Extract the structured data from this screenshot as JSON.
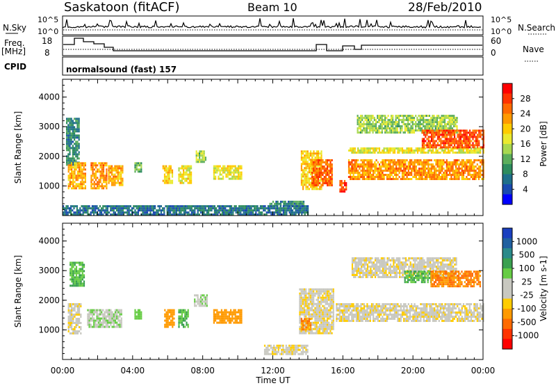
{
  "header": {
    "station": "Saskatoon (fitACF)",
    "beam": "Beam 10",
    "date": "28/Feb/2010"
  },
  "strip": {
    "nsky_label": "N.Sky",
    "nsky_ticks": [
      "10^5",
      "10^0"
    ],
    "nsearch_label": "N.Search",
    "freq_label_1": "Freq.",
    "freq_label_2": "[MHz]",
    "freq_ticks": [
      "18",
      "8"
    ],
    "nave_label": "Nave",
    "nave_ticks": [
      "60",
      "0"
    ],
    "cpid_label": "CPID",
    "cpid_text": "normalsound (fast) 157"
  },
  "power_colorbar": {
    "label": "Power [dB]",
    "ticks": [
      "28",
      "24",
      "20",
      "16",
      "12",
      "8",
      "4"
    ],
    "colors": [
      "#ff0000",
      "#ff3300",
      "#ff6a00",
      "#ff9a00",
      "#ffcc00",
      "#eaea30",
      "#a8d850",
      "#5cae5c",
      "#2e8c5e",
      "#1f6f8a",
      "#1a4ab0",
      "#0000ff"
    ]
  },
  "velocity_colorbar": {
    "label": "Velocity [m s-1]",
    "ticks": [
      "1000",
      "500",
      "100",
      "25",
      "-25",
      "-100",
      "-500",
      "-1000"
    ],
    "colors": [
      "#1a3fc0",
      "#2060a0",
      "#2a8a8a",
      "#3aa050",
      "#66cc44",
      "#c8c8c0",
      "#c8c8c0",
      "#ffcc00",
      "#ff9a00",
      "#ff6a00",
      "#ff3300",
      "#ff0000"
    ]
  },
  "chart_data": [
    {
      "type": "heatmap",
      "panel": "power",
      "ylabel": "Slant Range [km]",
      "xlabel": "",
      "xlim": [
        0,
        24
      ],
      "ylim": [
        0,
        4600
      ],
      "yticks": [
        1000,
        2000,
        3000,
        4000
      ],
      "ytick_labels": [
        "1000",
        "2000",
        "3000",
        "4000"
      ],
      "colorbar_label": "Power [dB]",
      "echo_regions": [
        {
          "t0": 0.2,
          "t1": 0.9,
          "r0": 1700,
          "r1": 3300,
          "value": 8
        },
        {
          "t0": 0.3,
          "t1": 1.3,
          "r0": 950,
          "r1": 1800,
          "value": 22
        },
        {
          "t0": 1.6,
          "t1": 2.5,
          "r0": 950,
          "r1": 1800,
          "value": 24
        },
        {
          "t0": 2.6,
          "t1": 3.4,
          "r0": 1000,
          "r1": 1700,
          "value": 22
        },
        {
          "t0": 4.1,
          "t1": 4.5,
          "r0": 1500,
          "r1": 1800,
          "value": 12
        },
        {
          "t0": 5.7,
          "t1": 6.3,
          "r0": 1100,
          "r1": 1700,
          "value": 20
        },
        {
          "t0": 6.6,
          "t1": 7.3,
          "r0": 1100,
          "r1": 1700,
          "value": 18
        },
        {
          "t0": 7.6,
          "t1": 8.2,
          "r0": 1800,
          "r1": 2200,
          "value": 14
        },
        {
          "t0": 8.6,
          "t1": 10.2,
          "r0": 1250,
          "r1": 1700,
          "value": 18
        },
        {
          "t0": 11.8,
          "t1": 13.8,
          "r0": 300,
          "r1": 500,
          "value": 8
        },
        {
          "t0": 13.6,
          "t1": 14.8,
          "r0": 900,
          "r1": 2200,
          "value": 20
        },
        {
          "t0": 14.2,
          "t1": 15.4,
          "r0": 1000,
          "r1": 1900,
          "value": 26
        },
        {
          "t0": 15.8,
          "t1": 16.2,
          "r0": 800,
          "r1": 1200,
          "value": 28
        },
        {
          "t0": 16.3,
          "t1": 24.0,
          "r0": 1200,
          "r1": 1900,
          "value": 24
        },
        {
          "t0": 16.3,
          "t1": 24.0,
          "r0": 2100,
          "r1": 2300,
          "value": 18
        },
        {
          "t0": 16.8,
          "t1": 22.5,
          "r0": 2800,
          "r1": 3400,
          "value": 14
        },
        {
          "t0": 20.5,
          "t1": 24.0,
          "r0": 2300,
          "r1": 2900,
          "value": 28
        },
        {
          "t0": 0.0,
          "t1": 14.0,
          "r0": 0,
          "r1": 350,
          "value": 6
        }
      ]
    },
    {
      "type": "heatmap",
      "panel": "velocity",
      "ylabel": "Slant Range [km]",
      "xlabel": "Time UT",
      "xlim": [
        0,
        24
      ],
      "ylim": [
        0,
        4600
      ],
      "yticks": [
        1000,
        2000,
        3000,
        4000
      ],
      "ytick_labels": [
        "1000",
        "2000",
        "3000",
        "4000"
      ],
      "xticks": [
        0,
        4,
        8,
        12,
        16,
        20,
        24
      ],
      "xtick_labels": [
        "00:00",
        "04:00",
        "08:00",
        "12:00",
        "16:00",
        "20:00",
        "00:00"
      ],
      "colorbar_label": "Velocity [m s-1]",
      "echo_regions": [
        {
          "t0": 0.3,
          "t1": 1.0,
          "r0": 900,
          "r1": 1900,
          "value": 0
        },
        {
          "t0": 0.4,
          "t1": 1.2,
          "r0": 2500,
          "r1": 3300,
          "value": 300
        },
        {
          "t0": 1.4,
          "t1": 3.4,
          "r0": 1100,
          "r1": 1700,
          "value": 80
        },
        {
          "t0": 4.1,
          "t1": 4.5,
          "r0": 1400,
          "r1": 1700,
          "value": 200
        },
        {
          "t0": 5.8,
          "t1": 6.4,
          "r0": 1100,
          "r1": 1700,
          "value": -200
        },
        {
          "t0": 6.6,
          "t1": 7.2,
          "r0": 1100,
          "r1": 1700,
          "value": 300
        },
        {
          "t0": 7.5,
          "t1": 8.2,
          "r0": 1800,
          "r1": 2200,
          "value": 60
        },
        {
          "t0": 8.6,
          "t1": 10.2,
          "r0": 1250,
          "r1": 1700,
          "value": -200
        },
        {
          "t0": 11.5,
          "t1": 14.0,
          "r0": 200,
          "r1": 500,
          "value": 0
        },
        {
          "t0": 13.5,
          "t1": 15.5,
          "r0": 900,
          "r1": 2400,
          "value": 0
        },
        {
          "t0": 13.6,
          "t1": 14.2,
          "r0": 1000,
          "r1": 1400,
          "value": -300
        },
        {
          "t0": 15.6,
          "t1": 24.0,
          "r0": 1300,
          "r1": 1900,
          "value": 0
        },
        {
          "t0": 16.5,
          "t1": 22.5,
          "r0": 2800,
          "r1": 3450,
          "value": 0
        },
        {
          "t0": 19.5,
          "t1": 21.0,
          "r0": 2600,
          "r1": 3000,
          "value": 300
        },
        {
          "t0": 21.0,
          "t1": 23.8,
          "r0": 2500,
          "r1": 3000,
          "value": -300
        }
      ]
    }
  ]
}
